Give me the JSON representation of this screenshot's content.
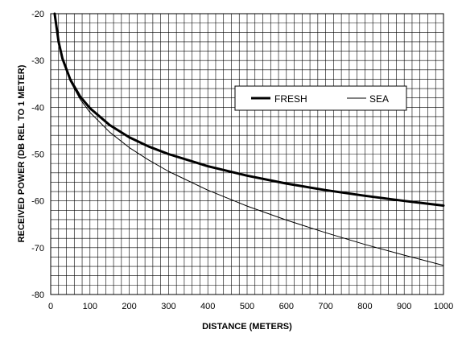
{
  "chart_data": {
    "type": "line",
    "title": "",
    "xlabel": "DISTANCE (METERS)",
    "ylabel": "RECEIVED POWER (DB REL TO 1 METER)",
    "xlim": [
      0,
      1000
    ],
    "ylim": [
      -80,
      -20
    ],
    "x_ticks": [
      "0",
      "100",
      "200",
      "300",
      "400",
      "500",
      "600",
      "700",
      "800",
      "900",
      "1000"
    ],
    "y_ticks": [
      "-20",
      "-30",
      "-40",
      "-50",
      "-60",
      "-70",
      "-80"
    ],
    "grid": true,
    "legend_position": "top-right",
    "series": [
      {
        "name": "FRESH",
        "color": "#000000",
        "x": [
          10,
          20,
          30,
          50,
          75,
          100,
          150,
          200,
          250,
          300,
          400,
          500,
          600,
          700,
          800,
          900,
          1000
        ],
        "y": [
          -20,
          -26,
          -29.6,
          -34.1,
          -37.7,
          -40.2,
          -43.8,
          -46.4,
          -48.4,
          -50,
          -52.6,
          -54.6,
          -56.3,
          -57.7,
          -58.9,
          -60,
          -61
        ]
      },
      {
        "name": "SEA",
        "color": "#000000",
        "x": [
          10,
          20,
          30,
          50,
          75,
          100,
          150,
          200,
          250,
          300,
          400,
          500,
          600,
          700,
          800,
          900,
          1000
        ],
        "y": [
          -20,
          -26.1,
          -29.8,
          -34.5,
          -38.3,
          -41.1,
          -45.3,
          -48.6,
          -51.3,
          -53.7,
          -57.7,
          -61.1,
          -64.1,
          -66.8,
          -69.3,
          -71.6,
          -73.8
        ]
      }
    ]
  }
}
